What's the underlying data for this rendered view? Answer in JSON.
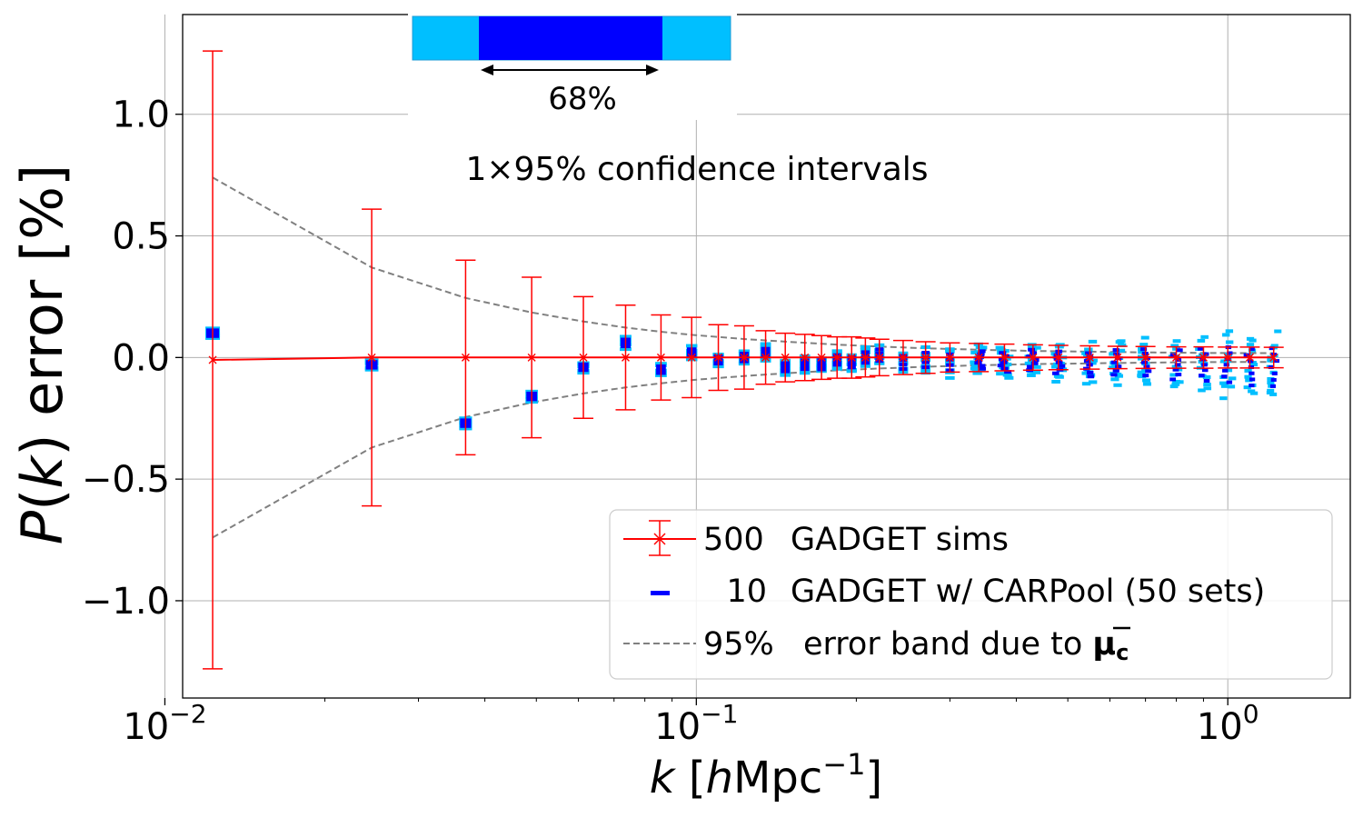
{
  "chart_data": {
    "type": "scatter",
    "x_scale": "log",
    "xlim": [
      0.0108,
      1.7
    ],
    "ylim": [
      -1.4,
      1.41
    ],
    "xlabel_main": "k",
    "xlabel_open": " [",
    "xlabel_h": "h",
    "xlabel_unit": "Mpc",
    "xlabel_exp": "−1",
    "xlabel_close": "]",
    "ylabel_p": "P",
    "ylabel_paren_open": "(",
    "ylabel_k": "k",
    "ylabel_rest": ") error  [%]",
    "x_ticks": [
      {
        "value": 0.01,
        "base": "10",
        "exp": "−2"
      },
      {
        "value": 0.1,
        "base": "10",
        "exp": "−1"
      },
      {
        "value": 1.0,
        "base": "10",
        "exp": "0"
      }
    ],
    "y_ticks": [
      {
        "value": 1.0,
        "label": "1.0"
      },
      {
        "value": 0.5,
        "label": "0.5"
      },
      {
        "value": 0.0,
        "label": "0.0"
      },
      {
        "value": -0.5,
        "label": "−0.5"
      },
      {
        "value": -1.0,
        "label": "−1.0"
      }
    ],
    "grid": true,
    "annotation_text": "1×95% confidence intervals",
    "inset_label": "68%",
    "legend_position": "lower-right",
    "legend": [
      {
        "count": "500",
        "label": "GADGET sims"
      },
      {
        "count": "10",
        "label": "GADGET w/ CARPool (50 sets)"
      },
      {
        "count": "95%",
        "label": "error band due to ",
        "symbol": "μ",
        "symbol_sub": "c"
      }
    ],
    "series": [
      {
        "name": "500 GADGET sims",
        "color": "#ff0000",
        "k": [
          0.0123,
          0.0245,
          0.0368,
          0.049,
          0.0613,
          0.0736,
          0.0858,
          0.098,
          0.11,
          0.123,
          0.135,
          0.147,
          0.16,
          0.172,
          0.184,
          0.196,
          0.208,
          0.221,
          0.245,
          0.27,
          0.3,
          0.34,
          0.38,
          0.43,
          0.48,
          0.55,
          0.62,
          0.7,
          0.8,
          0.9,
          1.0,
          1.1,
          1.22
        ],
        "y": [
          -0.01,
          0.0,
          0.0,
          0.0,
          0.0,
          0.0,
          0.0,
          0.0,
          0.0,
          0.0,
          0.0,
          0.0,
          0.0,
          0.0,
          0.0,
          0.0,
          0.0,
          0.0,
          0.0,
          0.0,
          0.0,
          0.0,
          0.0,
          0.0,
          0.0,
          0.0,
          0.0,
          0.0,
          0.0,
          0.0,
          0.0,
          0.0,
          0.0
        ],
        "err": [
          1.27,
          0.61,
          0.4,
          0.33,
          0.25,
          0.215,
          0.175,
          0.165,
          0.135,
          0.13,
          0.11,
          0.1,
          0.095,
          0.09,
          0.085,
          0.085,
          0.08,
          0.075,
          0.07,
          0.065,
          0.06,
          0.058,
          0.055,
          0.052,
          0.05,
          0.048,
          0.046,
          0.045,
          0.044,
          0.044,
          0.043,
          0.043,
          0.042
        ]
      },
      {
        "name": "10 GADGET w/ CARPool (50 sets)",
        "color_68": "#0000ff",
        "color_95": "#00bfff",
        "k": [
          0.0123,
          0.0245,
          0.0368,
          0.049,
          0.0613,
          0.0736,
          0.0858,
          0.098,
          0.11,
          0.123,
          0.135,
          0.147,
          0.16,
          0.172,
          0.184,
          0.196,
          0.208,
          0.221,
          0.245,
          0.27,
          0.3,
          0.34,
          0.38,
          0.43,
          0.48,
          0.55,
          0.62,
          0.7,
          0.8,
          0.9,
          1.0,
          1.1,
          1.22
        ],
        "y": [
          0.1,
          -0.03,
          -0.27,
          -0.16,
          -0.04,
          0.06,
          -0.05,
          0.02,
          -0.01,
          0.0,
          0.02,
          -0.04,
          -0.03,
          -0.03,
          -0.01,
          -0.02,
          0.0,
          0.01,
          -0.02,
          -0.01,
          -0.02,
          -0.01,
          -0.02,
          -0.01,
          -0.02,
          -0.03,
          -0.02,
          -0.02,
          -0.03,
          -0.03,
          -0.03,
          -0.04,
          -0.04
        ],
        "half_95": [
          0.02,
          0.02,
          0.02,
          0.02,
          0.02,
          0.025,
          0.025,
          0.025,
          0.025,
          0.03,
          0.03,
          0.03,
          0.03,
          0.03,
          0.035,
          0.035,
          0.04,
          0.04,
          0.045,
          0.05,
          0.055,
          0.06,
          0.065,
          0.07,
          0.075,
          0.08,
          0.085,
          0.09,
          0.1,
          0.11,
          0.12,
          0.12,
          0.13
        ],
        "half_68": [
          0.012,
          0.012,
          0.012,
          0.012,
          0.012,
          0.014,
          0.014,
          0.014,
          0.015,
          0.016,
          0.016,
          0.017,
          0.018,
          0.019,
          0.02,
          0.021,
          0.022,
          0.024,
          0.027,
          0.03,
          0.033,
          0.036,
          0.039,
          0.042,
          0.045,
          0.048,
          0.051,
          0.054,
          0.06,
          0.066,
          0.072,
          0.075,
          0.078
        ]
      },
      {
        "name": "95% error band due to μc",
        "color": "#808080",
        "style": "dashed",
        "k": [
          0.0123,
          0.0245,
          0.0368,
          0.049,
          0.0613,
          0.0736,
          0.0858,
          0.098,
          0.123,
          0.147,
          0.184,
          0.221,
          0.27,
          0.34,
          0.43,
          0.55,
          0.7,
          0.9,
          1.1,
          1.22
        ],
        "upper": [
          0.74,
          0.37,
          0.245,
          0.185,
          0.148,
          0.123,
          0.106,
          0.093,
          0.076,
          0.065,
          0.053,
          0.045,
          0.038,
          0.032,
          0.027,
          0.024,
          0.021,
          0.019,
          0.018,
          0.018
        ],
        "lower": [
          -0.74,
          -0.37,
          -0.245,
          -0.185,
          -0.148,
          -0.123,
          -0.106,
          -0.093,
          -0.076,
          -0.065,
          -0.053,
          -0.045,
          -0.038,
          -0.032,
          -0.027,
          -0.024,
          -0.021,
          -0.019,
          -0.018,
          -0.018
        ]
      }
    ]
  }
}
